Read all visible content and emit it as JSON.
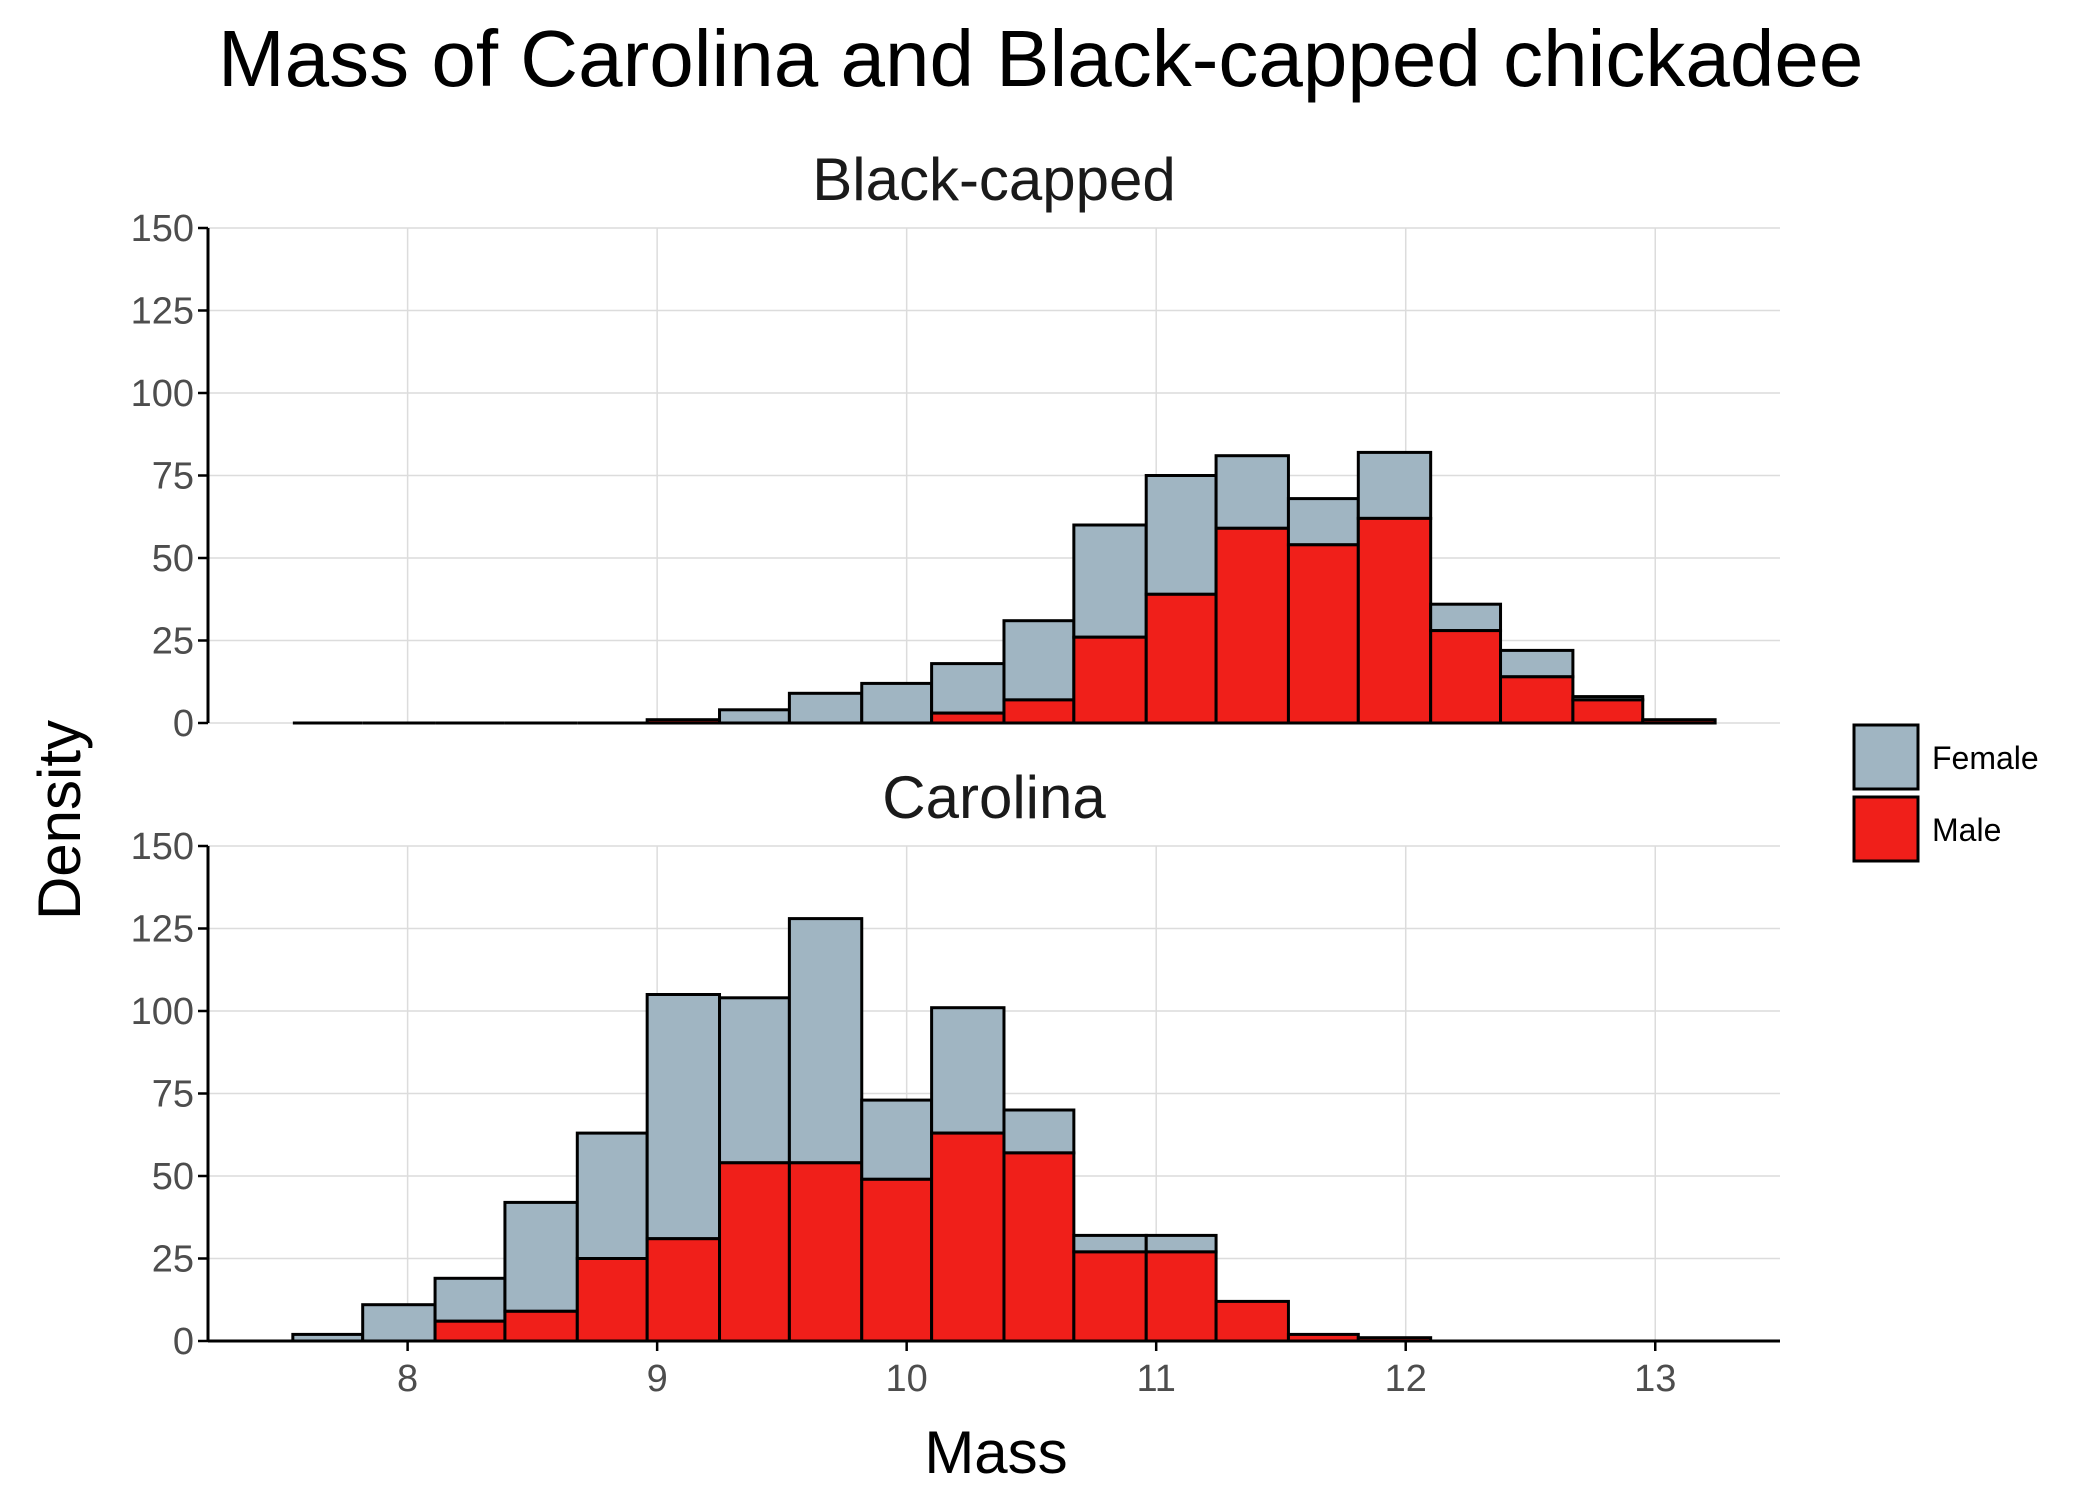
{
  "chart_data": {
    "type": "bar",
    "subtype": "stacked histogram, faceted",
    "title": "Mass of Carolina and Black-capped chickadee",
    "xlabel": "Mass",
    "ylabel": "Density",
    "xlim": [
      7.2,
      13.5
    ],
    "ylim": [
      0,
      150
    ],
    "x_ticks": [
      8,
      9,
      10,
      11,
      12,
      13
    ],
    "y_ticks": [
      0,
      25,
      50,
      75,
      100,
      125,
      150
    ],
    "grid": true,
    "legend": {
      "position": "right",
      "entries": [
        "Female",
        "Male"
      ]
    },
    "colors": {
      "Female": "#a0b5c2",
      "Male": "#f01f1a",
      "outline": "#000000"
    },
    "bin_edges": [
      7.54,
      7.82,
      8.11,
      8.39,
      8.68,
      8.96,
      9.25,
      9.53,
      9.82,
      10.1,
      10.39,
      10.67,
      10.96,
      11.24,
      11.53,
      11.81,
      12.1,
      12.38,
      12.67,
      12.95,
      13.24
    ],
    "facets": [
      {
        "title": "Black-capped",
        "series": [
          {
            "name": "Male",
            "values": [
              0,
              0,
              0,
              0,
              0,
              1,
              0,
              0,
              0,
              3,
              7,
              26,
              39,
              59,
              54,
              62,
              28,
              14,
              7,
              1
            ]
          },
          {
            "name": "Female",
            "values": [
              0,
              0,
              0,
              0,
              0,
              0,
              4,
              9,
              12,
              15,
              24,
              34,
              36,
              22,
              14,
              20,
              8,
              8,
              1,
              0
            ]
          }
        ]
      },
      {
        "title": "Carolina",
        "series": [
          {
            "name": "Male",
            "values": [
              0,
              0,
              6,
              9,
              25,
              31,
              54,
              54,
              49,
              63,
              57,
              27,
              27,
              12,
              2,
              1,
              0,
              0,
              0,
              0
            ]
          },
          {
            "name": "Female",
            "values": [
              2,
              11,
              13,
              33,
              38,
              74,
              50,
              74,
              24,
              38,
              13,
              5,
              5,
              0,
              0,
              0,
              0,
              0,
              0,
              0
            ]
          }
        ]
      }
    ]
  }
}
